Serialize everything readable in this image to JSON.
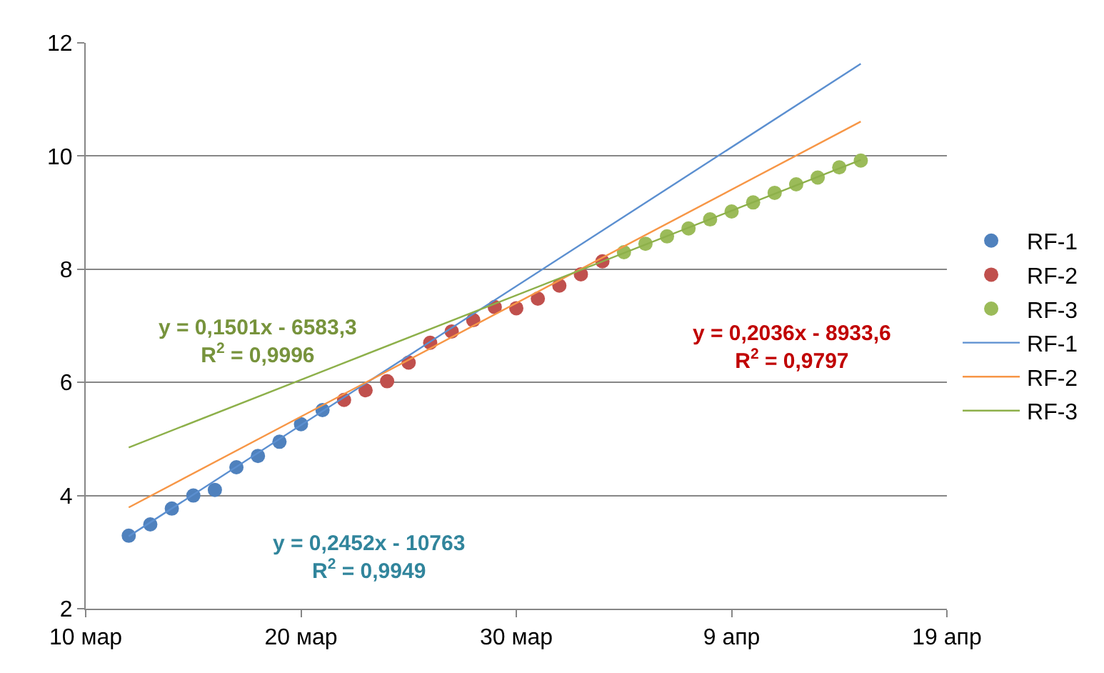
{
  "chart_data": {
    "type": "scatter",
    "xlim": [
      "--03-10",
      "--04-19"
    ],
    "xticks": [
      {
        "value": "--03-10",
        "label": "10 мар"
      },
      {
        "value": "--03-20",
        "label": "20 мар"
      },
      {
        "value": "--03-30",
        "label": "30 мар"
      },
      {
        "value": "--04-09",
        "label": "9 апр"
      },
      {
        "value": "--04-19",
        "label": "19 апр"
      }
    ],
    "ylim": [
      2,
      12
    ],
    "yticks": [
      2,
      4,
      6,
      8,
      10,
      12
    ],
    "grid": "y",
    "legend": "right",
    "series": [
      {
        "name": "RF-1",
        "marker": "circle",
        "color": "#4f81bd",
        "x": [
          "--03-12",
          "--03-13",
          "--03-14",
          "--03-15",
          "--03-16",
          "--03-17",
          "--03-18",
          "--03-19",
          "--03-20",
          "--03-21"
        ],
        "values": [
          3.29,
          3.49,
          3.77,
          4.0,
          4.1,
          4.5,
          4.7,
          4.95,
          5.26,
          5.51
        ]
      },
      {
        "name": "RF-2",
        "marker": "circle",
        "color": "#c0504d",
        "x": [
          "--03-22",
          "--03-23",
          "--03-24",
          "--03-25",
          "--03-26",
          "--03-27",
          "--03-28",
          "--03-29",
          "--03-30",
          "--03-31",
          "--04-01",
          "--04-02",
          "--04-03"
        ],
        "values": [
          5.69,
          5.86,
          6.02,
          6.35,
          6.7,
          6.9,
          7.1,
          7.33,
          7.31,
          7.48,
          7.71,
          7.91,
          8.14
        ]
      },
      {
        "name": "RF-3",
        "marker": "circle",
        "color": "#9bbb59",
        "x": [
          "--04-04",
          "--04-05",
          "--04-06",
          "--04-07",
          "--04-08",
          "--04-09",
          "--04-10",
          "--04-11",
          "--04-12",
          "--04-13",
          "--04-14",
          "--04-15"
        ],
        "values": [
          8.3,
          8.45,
          8.58,
          8.72,
          8.88,
          9.02,
          9.18,
          9.35,
          9.5,
          9.62,
          9.8,
          9.92
        ]
      },
      {
        "name": "RF-1",
        "type": "line",
        "marker": "none",
        "color": "#5b8fd0",
        "x": [
          "--03-12",
          "--04-15"
        ],
        "values": [
          3.28,
          11.63
        ]
      },
      {
        "name": "RF-2",
        "type": "line",
        "marker": "none",
        "color": "#f79646",
        "x": [
          "--03-12",
          "--04-15"
        ],
        "values": [
          3.79,
          10.61
        ]
      },
      {
        "name": "RF-3",
        "type": "line",
        "marker": "none",
        "color": "#8db04a",
        "x": [
          "--03-12",
          "--04-15"
        ],
        "values": [
          4.85,
          9.93
        ]
      }
    ],
    "annotations": [
      "y = 0,1501x - 6583,3\nR$^{2}$ = 0,9996",
      "y = 0,2452x - 10763\nR$^{2}$ = 0,9949",
      "y = 0,2036x - 8933,6\nR$^{2}$ = 0,9797"
    ]
  }
}
